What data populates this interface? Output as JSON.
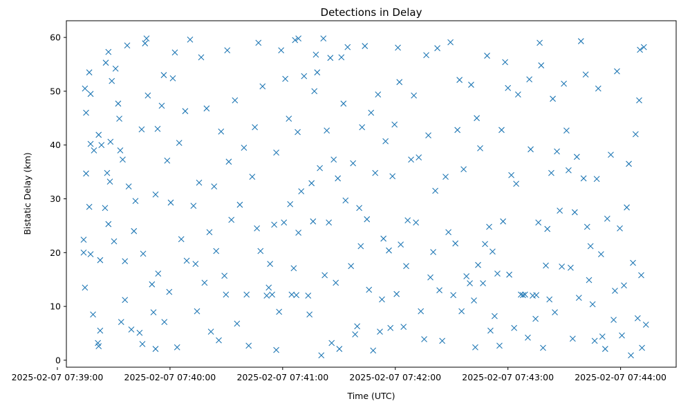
{
  "chart_data": {
    "type": "scatter",
    "title": "Detections in Delay",
    "xlabel": "Time (UTC)",
    "ylabel": "Bistatic Delay (km)",
    "x_units": "seconds after 2025-02-07 07:39:00 UTC",
    "xlim": [
      4.8,
      329.6
    ],
    "ylim": [
      -1.3,
      63.1
    ],
    "marker": "x",
    "color": "#1f77b4",
    "grid": false,
    "x_ticks": [
      {
        "value": 0,
        "label": "2025-02-07 07:39:00"
      },
      {
        "value": 60,
        "label": "2025-02-07 07:40:00"
      },
      {
        "value": 120,
        "label": "2025-02-07 07:41:00"
      },
      {
        "value": 180,
        "label": "2025-02-07 07:42:00"
      },
      {
        "value": 240,
        "label": "2025-02-07 07:43:00"
      },
      {
        "value": 300,
        "label": "2025-02-07 07:44:00"
      }
    ],
    "y_ticks": [
      {
        "value": 0,
        "label": "0"
      },
      {
        "value": 10,
        "label": "10"
      },
      {
        "value": 20,
        "label": "20"
      },
      {
        "value": 30,
        "label": "30"
      },
      {
        "value": 40,
        "label": "40"
      },
      {
        "value": 50,
        "label": "50"
      },
      {
        "value": 60,
        "label": "60"
      }
    ],
    "points": [
      [
        14,
        22.4
      ],
      [
        14,
        20
      ],
      [
        14.7,
        50.5
      ],
      [
        14.7,
        13.5
      ],
      [
        15.3,
        46
      ],
      [
        15.3,
        34.7
      ],
      [
        17,
        28.5
      ],
      [
        17,
        53.5
      ],
      [
        17.7,
        19.7
      ],
      [
        17.7,
        49.5
      ],
      [
        17.7,
        40.2
      ],
      [
        19,
        8.5
      ],
      [
        19.5,
        39
      ],
      [
        21.6,
        3.2
      ],
      [
        22,
        2.6
      ],
      [
        22.8,
        5.5
      ],
      [
        22,
        41.9
      ],
      [
        22.8,
        18.6
      ],
      [
        23.5,
        40
      ],
      [
        25.4,
        28.3
      ],
      [
        25.8,
        55.3
      ],
      [
        27.2,
        57.3
      ],
      [
        26.5,
        34.8
      ],
      [
        27.2,
        25.3
      ],
      [
        28,
        33.2
      ],
      [
        28.3,
        40.6
      ],
      [
        29,
        51.9
      ],
      [
        30.2,
        22.1
      ],
      [
        31,
        54.2
      ],
      [
        32.4,
        47.7
      ],
      [
        33,
        44.9
      ],
      [
        34,
        7.1
      ],
      [
        33.5,
        39
      ],
      [
        34.8,
        37.3
      ],
      [
        36,
        18.4
      ],
      [
        36,
        11.2
      ],
      [
        37.2,
        58.5
      ],
      [
        38,
        32.3
      ],
      [
        39.4,
        5.7
      ],
      [
        40.8,
        24
      ],
      [
        41.6,
        29.6
      ],
      [
        43.8,
        5.1
      ],
      [
        44.9,
        42.9
      ],
      [
        45.3,
        3
      ],
      [
        45.7,
        19.8
      ],
      [
        46.7,
        58.9
      ],
      [
        47.5,
        59.8
      ],
      [
        48.2,
        49.2
      ],
      [
        50.4,
        14.1
      ],
      [
        51.2,
        8.9
      ],
      [
        52.3,
        30.8
      ],
      [
        52.3,
        2.1
      ],
      [
        53.4,
        43
      ],
      [
        53.7,
        16.1
      ],
      [
        55.6,
        47.3
      ],
      [
        56.7,
        53
      ],
      [
        57,
        7.1
      ],
      [
        58.5,
        37.1
      ],
      [
        59.6,
        12.7
      ],
      [
        60.4,
        29.3
      ],
      [
        61.5,
        52.4
      ],
      [
        62.6,
        57.2
      ],
      [
        63.8,
        2.4
      ],
      [
        64.9,
        40.4
      ],
      [
        66,
        22.5
      ],
      [
        68.1,
        46.3
      ],
      [
        68.9,
        18.5
      ],
      [
        70.7,
        59.6
      ],
      [
        72.5,
        28.7
      ],
      [
        73.6,
        17.9
      ],
      [
        74.4,
        9.1
      ],
      [
        75.5,
        33
      ],
      [
        76.6,
        56.3
      ],
      [
        78.4,
        14.4
      ],
      [
        79.5,
        46.8
      ],
      [
        81,
        23.8
      ],
      [
        81.8,
        5.3
      ],
      [
        83.5,
        32.3
      ],
      [
        84.6,
        20.3
      ],
      [
        86,
        3.7
      ],
      [
        87.2,
        42.5
      ],
      [
        89,
        15.7
      ],
      [
        89.8,
        12.2
      ],
      [
        90.5,
        57.6
      ],
      [
        91.3,
        36.9
      ],
      [
        92.7,
        26.1
      ],
      [
        94.6,
        48.3
      ],
      [
        95.7,
        6.8
      ],
      [
        97.2,
        28.9
      ],
      [
        99.4,
        39.5
      ],
      [
        100.8,
        12.2
      ],
      [
        101.9,
        2.7
      ],
      [
        103.8,
        34.1
      ],
      [
        105.2,
        43.3
      ],
      [
        106.3,
        24.5
      ],
      [
        107.1,
        59
      ],
      [
        108.2,
        20.3
      ],
      [
        109.3,
        50.9
      ],
      [
        111.5,
        12
      ],
      [
        112.6,
        13.5
      ],
      [
        113.3,
        17.9
      ],
      [
        114.4,
        12.2
      ],
      [
        115.5,
        25.2
      ],
      [
        116.6,
        1.9
      ],
      [
        116.6,
        38.6
      ],
      [
        118.1,
        9
      ],
      [
        119.2,
        57.6
      ],
      [
        120.7,
        25.6
      ],
      [
        121.4,
        52.3
      ],
      [
        123.3,
        44.9
      ],
      [
        124,
        29
      ],
      [
        124.8,
        12.2
      ],
      [
        125.9,
        17.1
      ],
      [
        126.6,
        59.5
      ],
      [
        127.3,
        12.1
      ],
      [
        128,
        42.4
      ],
      [
        128.4,
        23.7
      ],
      [
        128.4,
        59.8
      ],
      [
        129.9,
        31.4
      ],
      [
        131.4,
        52.8
      ],
      [
        133.6,
        12
      ],
      [
        134.3,
        8.5
      ],
      [
        135.4,
        32.9
      ],
      [
        136.2,
        25.8
      ],
      [
        136.9,
        50
      ],
      [
        137.7,
        56.8
      ],
      [
        138.4,
        53.5
      ],
      [
        139.8,
        35.7
      ],
      [
        140.6,
        0.9
      ],
      [
        141.7,
        59.8
      ],
      [
        142.4,
        15.8
      ],
      [
        143.5,
        42.7
      ],
      [
        144.6,
        25.6
      ],
      [
        145.4,
        56.2
      ],
      [
        146.1,
        3.2
      ],
      [
        147.2,
        37.3
      ],
      [
        148.3,
        14.4
      ],
      [
        149.4,
        33.8
      ],
      [
        150.2,
        2.1
      ],
      [
        151.3,
        56.3
      ],
      [
        152.4,
        47.7
      ],
      [
        153.5,
        29.7
      ],
      [
        154.6,
        58.2
      ],
      [
        156.4,
        17.5
      ],
      [
        157.5,
        36.6
      ],
      [
        158.6,
        4.8
      ],
      [
        159.7,
        6.3
      ],
      [
        160.8,
        28.3
      ],
      [
        161.6,
        21.2
      ],
      [
        162.3,
        43.3
      ],
      [
        163.8,
        58.4
      ],
      [
        164.9,
        26.2
      ],
      [
        166,
        13.1
      ],
      [
        167.1,
        46
      ],
      [
        168.2,
        1.8
      ],
      [
        169.3,
        34.8
      ],
      [
        170.8,
        49.4
      ],
      [
        171.8,
        5.3
      ],
      [
        172.9,
        11.3
      ],
      [
        173.7,
        22.6
      ],
      [
        174.8,
        40.7
      ],
      [
        176.6,
        20.4
      ],
      [
        177.4,
        6
      ],
      [
        178.5,
        34.2
      ],
      [
        179.6,
        43.8
      ],
      [
        180.7,
        12.3
      ],
      [
        181.4,
        58.1
      ],
      [
        182.2,
        51.7
      ],
      [
        182.9,
        21.5
      ],
      [
        184.4,
        6.2
      ],
      [
        185.8,
        17.5
      ],
      [
        186.6,
        26
      ],
      [
        188.4,
        37.3
      ],
      [
        189.9,
        49.2
      ],
      [
        191,
        25.6
      ],
      [
        192.5,
        37.7
      ],
      [
        193.6,
        9.1
      ],
      [
        195.4,
        3.9
      ],
      [
        196.5,
        56.7
      ],
      [
        197.6,
        41.8
      ],
      [
        198.7,
        15.4
      ],
      [
        200.2,
        20.1
      ],
      [
        201.3,
        31.5
      ],
      [
        202.4,
        58
      ],
      [
        203.5,
        13
      ],
      [
        205,
        3.6
      ],
      [
        206.8,
        34.1
      ],
      [
        208.3,
        23.8
      ],
      [
        209.4,
        59.1
      ],
      [
        210.9,
        12.1
      ],
      [
        212,
        21.7
      ],
      [
        213.1,
        42.8
      ],
      [
        214.2,
        52.1
      ],
      [
        215.3,
        9.1
      ],
      [
        216.4,
        35.5
      ],
      [
        217.9,
        15.6
      ],
      [
        219.7,
        14.3
      ],
      [
        220.4,
        51.2
      ],
      [
        221.9,
        11.1
      ],
      [
        222.6,
        2.4
      ],
      [
        223.4,
        45
      ],
      [
        224.1,
        17.7
      ],
      [
        225.2,
        39.4
      ],
      [
        226.7,
        14.3
      ],
      [
        227.8,
        21.6
      ],
      [
        228.9,
        56.6
      ],
      [
        230,
        24.8
      ],
      [
        230.7,
        5.5
      ],
      [
        231.8,
        20.2
      ],
      [
        232.9,
        8.2
      ],
      [
        234.4,
        16.1
      ],
      [
        235.5,
        2.7
      ],
      [
        236.6,
        42.8
      ],
      [
        237.4,
        25.8
      ],
      [
        238.5,
        55.4
      ],
      [
        240,
        50.6
      ],
      [
        240.7,
        15.9
      ],
      [
        241.8,
        34.4
      ],
      [
        243.3,
        6
      ],
      [
        244.4,
        32.8
      ],
      [
        245.4,
        49.4
      ],
      [
        246.9,
        12.2
      ],
      [
        248,
        12.1
      ],
      [
        249.1,
        12.2
      ],
      [
        250.6,
        4.2
      ],
      [
        251.4,
        52.2
      ],
      [
        252.1,
        39.2
      ],
      [
        253.2,
        12
      ],
      [
        254.7,
        7.7
      ],
      [
        255.1,
        12.1
      ],
      [
        256.2,
        25.6
      ],
      [
        256.9,
        59
      ],
      [
        257.7,
        54.8
      ],
      [
        258.7,
        2.3
      ],
      [
        260.2,
        17.6
      ],
      [
        261,
        24.4
      ],
      [
        262.1,
        11.3
      ],
      [
        263.1,
        34.8
      ],
      [
        263.9,
        48.6
      ],
      [
        265,
        8.9
      ],
      [
        266.1,
        38.8
      ],
      [
        267.6,
        27.8
      ],
      [
        268.7,
        17.4
      ],
      [
        269.8,
        51.4
      ],
      [
        271.2,
        42.7
      ],
      [
        272.3,
        35.3
      ],
      [
        273.4,
        17.2
      ],
      [
        274.5,
        4
      ],
      [
        275.6,
        27.5
      ],
      [
        276.7,
        37.8
      ],
      [
        277.8,
        11.6
      ],
      [
        278.9,
        59.3
      ],
      [
        280.3,
        33.8
      ],
      [
        281.4,
        53.1
      ],
      [
        282.2,
        24.8
      ],
      [
        283.2,
        14.9
      ],
      [
        284,
        21.2
      ],
      [
        285.1,
        10.4
      ],
      [
        286.2,
        3.6
      ],
      [
        287.3,
        33.7
      ],
      [
        288.1,
        50.5
      ],
      [
        289.6,
        19.7
      ],
      [
        290.3,
        4.4
      ],
      [
        291.8,
        2.1
      ],
      [
        292.9,
        26.3
      ],
      [
        294.8,
        38.2
      ],
      [
        296.3,
        7.5
      ],
      [
        297,
        12.9
      ],
      [
        298.1,
        53.7
      ],
      [
        299.6,
        24.5
      ],
      [
        300.7,
        4.6
      ],
      [
        301.8,
        13.9
      ],
      [
        303.3,
        28.4
      ],
      [
        304.4,
        36.5
      ],
      [
        305.5,
        0.9
      ],
      [
        306.6,
        18.1
      ],
      [
        308,
        42
      ],
      [
        309.1,
        7.8
      ],
      [
        309.9,
        48.3
      ],
      [
        311,
        15.8
      ],
      [
        312.4,
        58.2
      ],
      [
        313.5,
        6.6
      ],
      [
        310.3,
        57.7
      ],
      [
        311.4,
        2.3
      ]
    ]
  }
}
